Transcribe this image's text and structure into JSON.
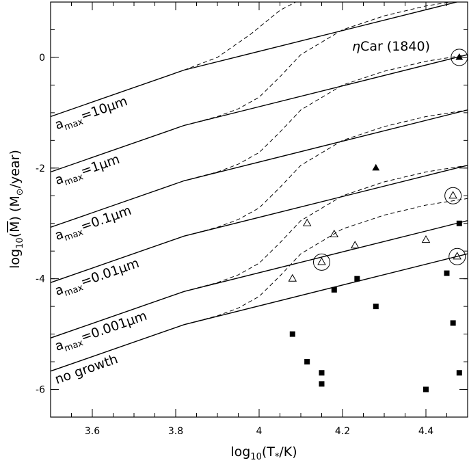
{
  "chart_data": {
    "type": "line",
    "title": "",
    "xlabel": {
      "prefix": "log",
      "sub": "10",
      "open": "(T",
      "star": "*",
      "close": "/K)"
    },
    "ylabel": {
      "prefix": "log",
      "sub": "10",
      "open": "(",
      "mdot": "M",
      "middle": ")  (M",
      "sun": "⊙",
      "close": "/year)"
    },
    "xlim": [
      3.5,
      4.5
    ],
    "ylim": [
      -6.5,
      1.0
    ],
    "xticks": [
      3.6,
      3.8,
      4.0,
      4.2,
      4.4
    ],
    "xtick_labels": [
      "3.6",
      "3.8",
      "4",
      "4.2",
      "4.4"
    ],
    "yticks": [
      0,
      -2,
      -4,
      -6
    ],
    "ytick_labels": [
      "0",
      "-2",
      "-4",
      "-6"
    ],
    "grid": false,
    "solid_series": [
      {
        "key": "a10",
        "label": {
          "a": "a",
          "sub": "max",
          "rest": "=10μm"
        },
        "x": [
          3.5,
          3.82,
          4.5
        ],
        "y": [
          -1.07,
          -0.23,
          1.05
        ]
      },
      {
        "key": "a1",
        "label": {
          "a": "a",
          "sub": "max",
          "rest": "=1μm"
        },
        "x": [
          3.5,
          3.82,
          4.5
        ],
        "y": [
          -2.07,
          -1.23,
          0.05
        ]
      },
      {
        "key": "a01",
        "label": {
          "a": "a",
          "sub": "max",
          "rest": "=0.1μm"
        },
        "x": [
          3.5,
          3.82,
          4.5
        ],
        "y": [
          -3.07,
          -2.23,
          -0.95
        ]
      },
      {
        "key": "a001",
        "label": {
          "a": "a",
          "sub": "max",
          "rest": "=0.01μm"
        },
        "x": [
          3.5,
          3.82,
          4.5
        ],
        "y": [
          -4.07,
          -3.23,
          -1.95
        ]
      },
      {
        "key": "a0001",
        "label": {
          "a": "a",
          "sub": "max",
          "rest": "=0.001μm"
        },
        "x": [
          3.5,
          3.82,
          4.5
        ],
        "y": [
          -5.07,
          -4.23,
          -2.95
        ]
      },
      {
        "key": "nogrowth",
        "label": {
          "a": "no growth",
          "sub": "",
          "rest": ""
        },
        "x": [
          3.5,
          3.82,
          4.5
        ],
        "y": [
          -5.67,
          -4.83,
          -3.55
        ]
      }
    ],
    "dashed_series": [
      {
        "x": [
          3.82,
          3.9,
          3.98,
          4.05,
          4.1
        ],
        "y": [
          -0.23,
          0.0,
          0.42,
          0.85,
          1.05
        ]
      },
      {
        "x": [
          3.82,
          3.9,
          3.95,
          4.0,
          4.05,
          4.1,
          4.2,
          4.3,
          4.4,
          4.5
        ],
        "y": [
          -1.23,
          -1.07,
          -0.93,
          -0.72,
          -0.35,
          0.05,
          0.5,
          0.75,
          0.93,
          1.05
        ]
      },
      {
        "x": [
          3.82,
          3.9,
          3.95,
          4.0,
          4.05,
          4.1,
          4.2,
          4.3,
          4.4,
          4.5
        ],
        "y": [
          -2.23,
          -2.07,
          -1.93,
          -1.72,
          -1.35,
          -0.95,
          -0.5,
          -0.25,
          -0.07,
          0.05
        ]
      },
      {
        "x": [
          3.82,
          3.9,
          3.95,
          4.0,
          4.05,
          4.1,
          4.2,
          4.3,
          4.4,
          4.5
        ],
        "y": [
          -3.23,
          -3.07,
          -2.93,
          -2.72,
          -2.35,
          -1.95,
          -1.5,
          -1.25,
          -1.07,
          -0.95
        ]
      },
      {
        "x": [
          3.82,
          3.9,
          3.95,
          4.0,
          4.05,
          4.1,
          4.2,
          4.3,
          4.4,
          4.5
        ],
        "y": [
          -4.23,
          -4.07,
          -3.93,
          -3.72,
          -3.35,
          -2.95,
          -2.5,
          -2.25,
          -2.07,
          -1.95
        ]
      },
      {
        "x": [
          3.82,
          3.9,
          3.95,
          4.0,
          4.05,
          4.1,
          4.2,
          4.3,
          4.4,
          4.5
        ],
        "y": [
          -4.83,
          -4.67,
          -4.53,
          -4.32,
          -3.95,
          -3.55,
          -3.1,
          -2.85,
          -2.67,
          -2.55
        ]
      }
    ],
    "points": {
      "filled_squares": [
        {
          "x": 4.08,
          "y": -5.0
        },
        {
          "x": 4.115,
          "y": -5.5
        },
        {
          "x": 4.15,
          "y": -5.7
        },
        {
          "x": 4.15,
          "y": -5.9
        },
        {
          "x": 4.18,
          "y": -4.2
        },
        {
          "x": 4.235,
          "y": -4.0
        },
        {
          "x": 4.28,
          "y": -4.5
        },
        {
          "x": 4.4,
          "y": -6.0
        },
        {
          "x": 4.45,
          "y": -3.9
        },
        {
          "x": 4.465,
          "y": -4.8
        },
        {
          "x": 4.48,
          "y": -3.0
        },
        {
          "x": 4.48,
          "y": -5.7
        }
      ],
      "filled_triangles": [
        {
          "x": 4.28,
          "y": -2.0
        },
        {
          "x": 4.48,
          "y": 0.0
        }
      ],
      "open_triangles": [
        {
          "x": 4.08,
          "y": -4.0
        },
        {
          "x": 4.115,
          "y": -3.0
        },
        {
          "x": 4.15,
          "y": -3.7
        },
        {
          "x": 4.18,
          "y": -3.2
        },
        {
          "x": 4.23,
          "y": -3.4
        },
        {
          "x": 4.4,
          "y": -3.3
        },
        {
          "x": 4.465,
          "y": -2.5
        },
        {
          "x": 4.475,
          "y": -3.6
        }
      ],
      "circled": [
        {
          "x": 4.48,
          "y": 0.0
        },
        {
          "x": 4.15,
          "y": -3.7
        },
        {
          "x": 4.465,
          "y": -2.5
        },
        {
          "x": 4.475,
          "y": -3.6
        }
      ]
    },
    "annotations": {
      "eta_car": {
        "eta": "η",
        "rest": "Car (1840)"
      }
    }
  }
}
